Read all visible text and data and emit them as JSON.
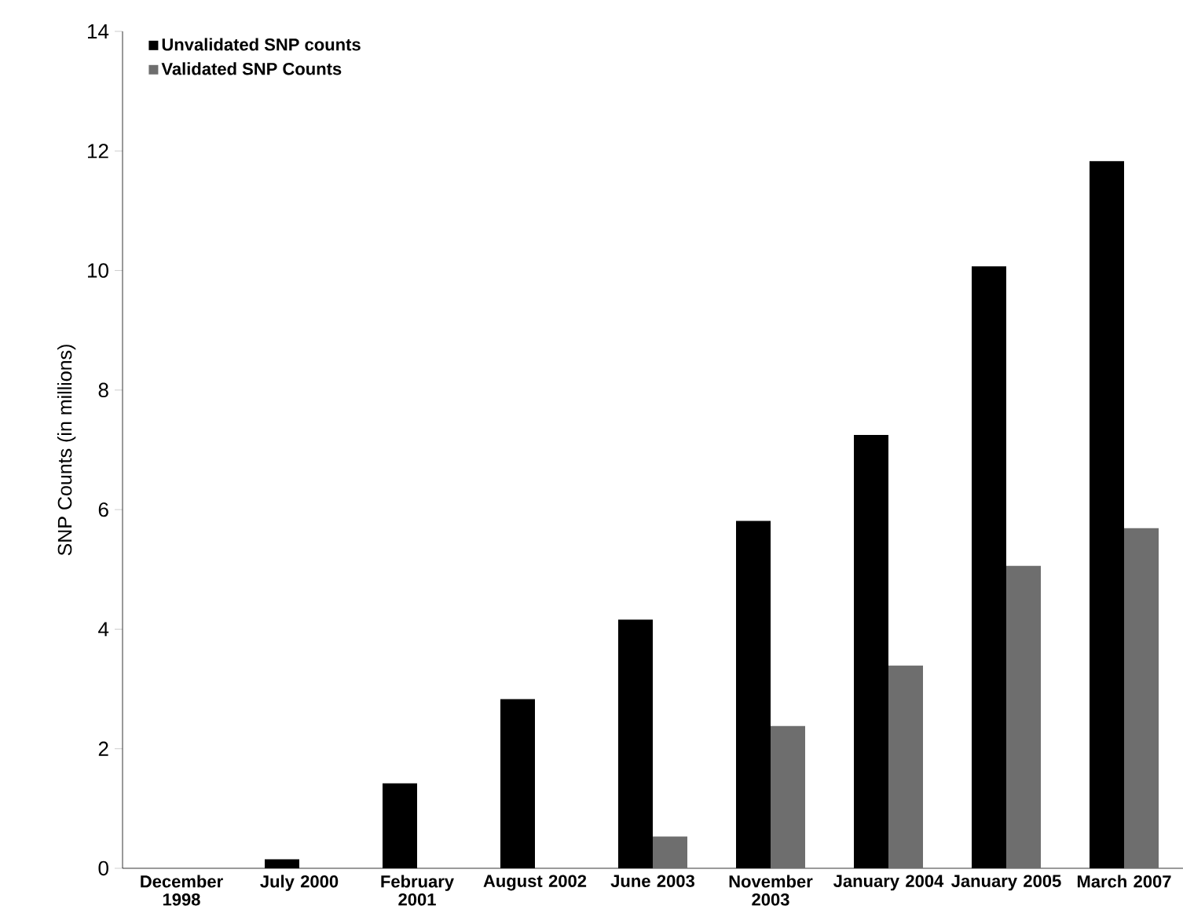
{
  "chart_data": {
    "type": "bar",
    "ylabel": "SNP Counts (in millions)",
    "categories": [
      "December 1998",
      "July 2000",
      "February 2001",
      "August 2002",
      "June 2003",
      "November 2003",
      "January 2004",
      "January 2005",
      "March 2007"
    ],
    "series": [
      {
        "name": "Unvalidated SNP counts",
        "color": "#000000",
        "values": [
          0,
          0.15,
          1.42,
          2.83,
          4.16,
          5.81,
          7.25,
          10.07,
          11.83
        ]
      },
      {
        "name": "Validated SNP Counts",
        "color": "#6e6e6e",
        "values": [
          0,
          0,
          0,
          0,
          0.53,
          2.38,
          3.39,
          5.06,
          5.69
        ]
      }
    ],
    "ylim": [
      0,
      14
    ],
    "yticks": [
      0,
      2,
      4,
      6,
      8,
      10,
      12,
      14
    ],
    "legend": "top left",
    "grid": false
  }
}
